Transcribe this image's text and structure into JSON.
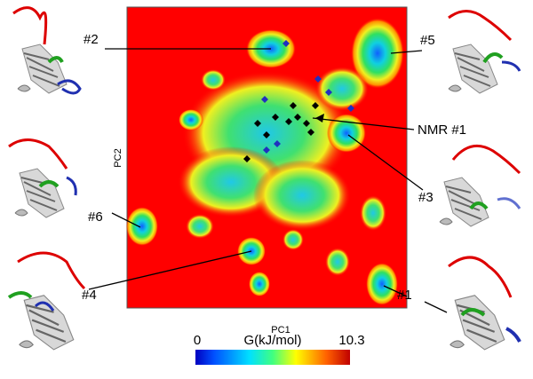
{
  "figure": {
    "x_label": "PC1",
    "y_label": "PC2",
    "colorbar": {
      "label": "G(kJ/mol)",
      "min": 0,
      "max": 10.3
    },
    "callouts": [
      "#2",
      "#5",
      "NMR #1",
      "#3",
      "#6",
      "#4",
      "#1"
    ]
  }
}
